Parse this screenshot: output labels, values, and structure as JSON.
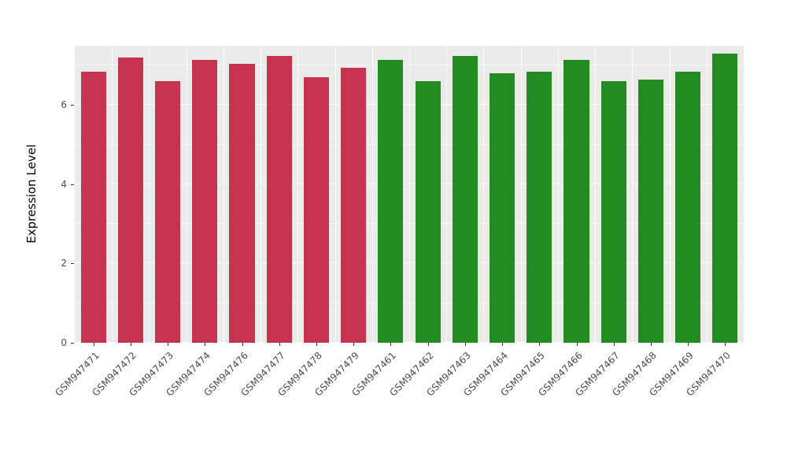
{
  "chart_data": {
    "type": "bar",
    "title": "",
    "xlabel": "",
    "ylabel": "Expression Level",
    "ylim": [
      0,
      7.5
    ],
    "yticks": [
      0,
      2,
      4,
      6
    ],
    "yticks_minor": [
      1,
      3,
      5,
      7
    ],
    "grid": true,
    "legend": "none",
    "panel_background": "#EBEBEB",
    "categories": [
      "GSM947471",
      "GSM947472",
      "GSM947473",
      "GSM947474",
      "GSM947476",
      "GSM947477",
      "GSM947478",
      "GSM947479",
      "GSM947461",
      "GSM947462",
      "GSM947463",
      "GSM947464",
      "GSM947465",
      "GSM947466",
      "GSM947467",
      "GSM947468",
      "GSM947469",
      "GSM947470"
    ],
    "values": [
      6.85,
      7.2,
      6.6,
      7.15,
      7.05,
      7.25,
      6.7,
      6.95,
      7.15,
      6.6,
      7.25,
      6.8,
      6.85,
      7.15,
      6.6,
      6.65,
      6.85,
      7.3
    ],
    "bar_colors": [
      "#C5334E",
      "#C5334E",
      "#C5334E",
      "#C5334E",
      "#C5334E",
      "#C5334E",
      "#C5334E",
      "#C5334E",
      "#228B22",
      "#228B22",
      "#228B22",
      "#228B22",
      "#228B22",
      "#228B22",
      "#228B22",
      "#228B22",
      "#228B22",
      "#228B22"
    ],
    "group_colors": {
      "red_group": "#C5334E",
      "green_group": "#228B22"
    }
  }
}
